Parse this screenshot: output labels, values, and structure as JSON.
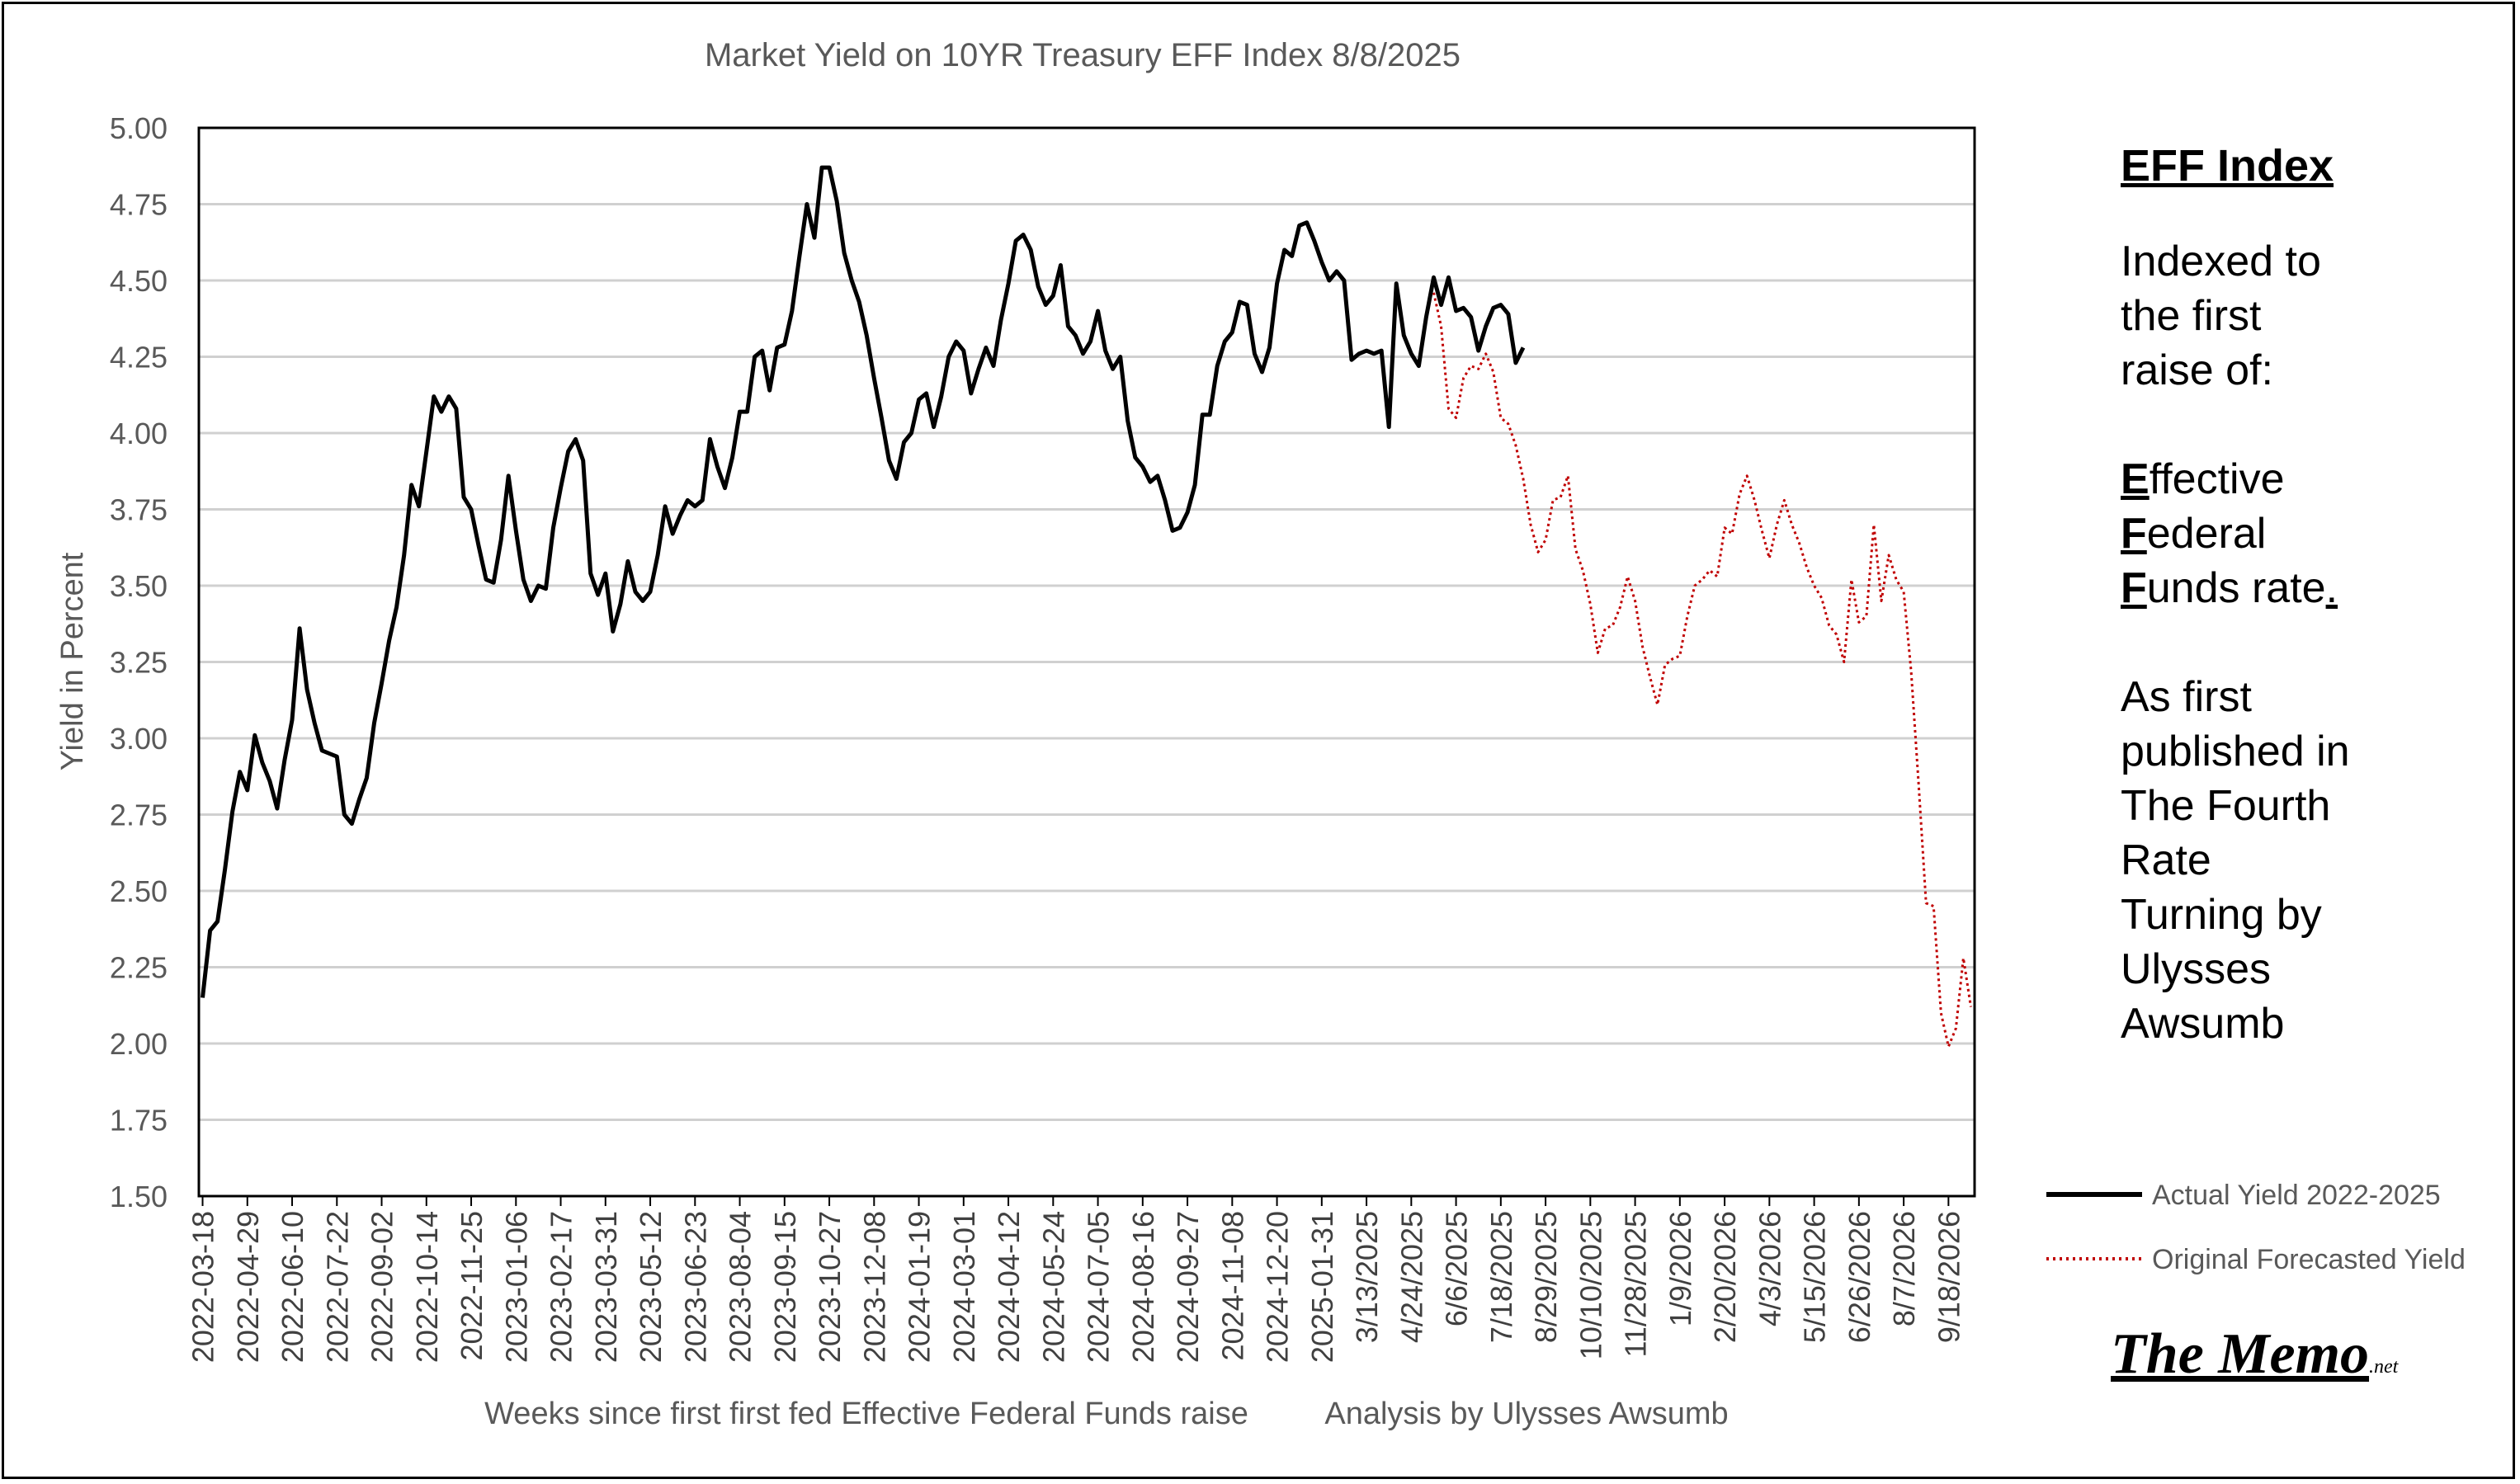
{
  "chart_data": {
    "type": "line",
    "title": "Market Yield on 10YR Treasury EFF Index 8/8/2025",
    "xlabel": "Weeks since first first fed Effective Federal Funds raise",
    "xlabel_note": "Analysis by Ulysses Awsumb",
    "ylabel": "Yield in Percent",
    "ylim": [
      1.5,
      5.0
    ],
    "yticks": [
      "5.00",
      "4.75",
      "4.50",
      "4.25",
      "4.00",
      "3.75",
      "3.50",
      "3.25",
      "3.00",
      "2.75",
      "2.50",
      "2.25",
      "2.00",
      "1.75",
      "1.50"
    ],
    "x_count": 238,
    "xticks": [
      {
        "i": 0,
        "label": "2022-03-18"
      },
      {
        "i": 6,
        "label": "2022-04-29"
      },
      {
        "i": 12,
        "label": "2022-06-10"
      },
      {
        "i": 18,
        "label": "2022-07-22"
      },
      {
        "i": 24,
        "label": "2022-09-02"
      },
      {
        "i": 30,
        "label": "2022-10-14"
      },
      {
        "i": 36,
        "label": "2022-11-25"
      },
      {
        "i": 42,
        "label": "2023-01-06"
      },
      {
        "i": 48,
        "label": "2023-02-17"
      },
      {
        "i": 54,
        "label": "2023-03-31"
      },
      {
        "i": 60,
        "label": "2023-05-12"
      },
      {
        "i": 66,
        "label": "2023-06-23"
      },
      {
        "i": 72,
        "label": "2023-08-04"
      },
      {
        "i": 78,
        "label": "2023-09-15"
      },
      {
        "i": 84,
        "label": "2023-10-27"
      },
      {
        "i": 90,
        "label": "2023-12-08"
      },
      {
        "i": 96,
        "label": "2024-01-19"
      },
      {
        "i": 102,
        "label": "2024-03-01"
      },
      {
        "i": 108,
        "label": "2024-04-12"
      },
      {
        "i": 114,
        "label": "2024-05-24"
      },
      {
        "i": 120,
        "label": "2024-07-05"
      },
      {
        "i": 126,
        "label": "2024-08-16"
      },
      {
        "i": 132,
        "label": "2024-09-27"
      },
      {
        "i": 138,
        "label": "2024-11-08"
      },
      {
        "i": 144,
        "label": "2024-12-20"
      },
      {
        "i": 150,
        "label": "2025-01-31"
      },
      {
        "i": 156,
        "label": "3/13/2025"
      },
      {
        "i": 162,
        "label": "4/24/2025"
      },
      {
        "i": 168,
        "label": "6/6/2025"
      },
      {
        "i": 174,
        "label": "7/18/2025"
      },
      {
        "i": 180,
        "label": "8/29/2025"
      },
      {
        "i": 186,
        "label": "10/10/2025"
      },
      {
        "i": 192,
        "label": "11/28/2025"
      },
      {
        "i": 198,
        "label": "1/9/2026"
      },
      {
        "i": 204,
        "label": "2/20/2026"
      },
      {
        "i": 210,
        "label": "4/3/2026"
      },
      {
        "i": 216,
        "label": "5/15/2026"
      },
      {
        "i": 222,
        "label": "6/26/2026"
      },
      {
        "i": 228,
        "label": "8/7/2026"
      },
      {
        "i": 234,
        "label": "9/18/2026"
      }
    ],
    "grid": true,
    "legend_position": "right",
    "series": [
      {
        "name": "Actual Yield 2022-2025",
        "color": "#000000",
        "style": "solid",
        "points": [
          [
            0,
            2.15
          ],
          [
            1,
            2.37
          ],
          [
            2,
            2.4
          ],
          [
            3,
            2.57
          ],
          [
            4,
            2.76
          ],
          [
            5,
            2.89
          ],
          [
            6,
            2.83
          ],
          [
            7,
            3.01
          ],
          [
            8,
            2.92
          ],
          [
            9,
            2.86
          ],
          [
            10,
            2.77
          ],
          [
            11,
            2.93
          ],
          [
            12,
            3.06
          ],
          [
            13,
            3.36
          ],
          [
            14,
            3.16
          ],
          [
            15,
            3.05
          ],
          [
            16,
            2.96
          ],
          [
            17,
            2.95
          ],
          [
            18,
            2.94
          ],
          [
            19,
            2.75
          ],
          [
            20,
            2.72
          ],
          [
            21,
            2.8
          ],
          [
            22,
            2.87
          ],
          [
            23,
            3.05
          ],
          [
            24,
            3.18
          ],
          [
            25,
            3.32
          ],
          [
            26,
            3.43
          ],
          [
            27,
            3.6
          ],
          [
            28,
            3.83
          ],
          [
            29,
            3.76
          ],
          [
            30,
            3.94
          ],
          [
            31,
            4.12
          ],
          [
            32,
            4.07
          ],
          [
            33,
            4.12
          ],
          [
            34,
            4.08
          ],
          [
            35,
            3.79
          ],
          [
            36,
            3.75
          ],
          [
            37,
            3.63
          ],
          [
            38,
            3.52
          ],
          [
            39,
            3.51
          ],
          [
            40,
            3.65
          ],
          [
            41,
            3.86
          ],
          [
            42,
            3.68
          ],
          [
            43,
            3.52
          ],
          [
            44,
            3.45
          ],
          [
            45,
            3.5
          ],
          [
            46,
            3.49
          ],
          [
            47,
            3.69
          ],
          [
            48,
            3.82
          ],
          [
            49,
            3.94
          ],
          [
            50,
            3.98
          ],
          [
            51,
            3.91
          ],
          [
            52,
            3.54
          ],
          [
            53,
            3.47
          ],
          [
            54,
            3.54
          ],
          [
            55,
            3.35
          ],
          [
            56,
            3.44
          ],
          [
            57,
            3.58
          ],
          [
            58,
            3.48
          ],
          [
            59,
            3.45
          ],
          [
            60,
            3.48
          ],
          [
            61,
            3.6
          ],
          [
            62,
            3.76
          ],
          [
            63,
            3.67
          ],
          [
            64,
            3.73
          ],
          [
            65,
            3.78
          ],
          [
            66,
            3.76
          ],
          [
            67,
            3.78
          ],
          [
            68,
            3.98
          ],
          [
            69,
            3.89
          ],
          [
            70,
            3.82
          ],
          [
            71,
            3.92
          ],
          [
            72,
            4.07
          ],
          [
            73,
            4.07
          ],
          [
            74,
            4.25
          ],
          [
            75,
            4.27
          ],
          [
            76,
            4.14
          ],
          [
            77,
            4.28
          ],
          [
            78,
            4.29
          ],
          [
            79,
            4.4
          ],
          [
            80,
            4.58
          ],
          [
            81,
            4.75
          ],
          [
            82,
            4.64
          ],
          [
            83,
            4.87
          ],
          [
            84,
            4.87
          ],
          [
            85,
            4.76
          ],
          [
            86,
            4.59
          ],
          [
            87,
            4.5
          ],
          [
            88,
            4.43
          ],
          [
            89,
            4.32
          ],
          [
            90,
            4.18
          ],
          [
            91,
            4.05
          ],
          [
            92,
            3.91
          ],
          [
            93,
            3.85
          ],
          [
            94,
            3.97
          ],
          [
            95,
            4.0
          ],
          [
            96,
            4.11
          ],
          [
            97,
            4.13
          ],
          [
            98,
            4.02
          ],
          [
            99,
            4.12
          ],
          [
            100,
            4.25
          ],
          [
            101,
            4.3
          ],
          [
            102,
            4.27
          ],
          [
            103,
            4.13
          ],
          [
            104,
            4.21
          ],
          [
            105,
            4.28
          ],
          [
            106,
            4.22
          ],
          [
            107,
            4.37
          ],
          [
            108,
            4.49
          ],
          [
            109,
            4.63
          ],
          [
            110,
            4.65
          ],
          [
            111,
            4.6
          ],
          [
            112,
            4.48
          ],
          [
            113,
            4.42
          ],
          [
            114,
            4.45
          ],
          [
            115,
            4.55
          ],
          [
            116,
            4.35
          ],
          [
            117,
            4.32
          ],
          [
            118,
            4.26
          ],
          [
            119,
            4.3
          ],
          [
            120,
            4.4
          ],
          [
            121,
            4.27
          ],
          [
            122,
            4.21
          ],
          [
            123,
            4.25
          ],
          [
            124,
            4.04
          ],
          [
            125,
            3.92
          ],
          [
            126,
            3.89
          ],
          [
            127,
            3.84
          ],
          [
            128,
            3.86
          ],
          [
            129,
            3.78
          ],
          [
            130,
            3.68
          ],
          [
            131,
            3.69
          ],
          [
            132,
            3.74
          ],
          [
            133,
            3.83
          ],
          [
            134,
            4.06
          ],
          [
            135,
            4.06
          ],
          [
            136,
            4.22
          ],
          [
            137,
            4.3
          ],
          [
            138,
            4.33
          ],
          [
            139,
            4.43
          ],
          [
            140,
            4.42
          ],
          [
            141,
            4.26
          ],
          [
            142,
            4.2
          ],
          [
            143,
            4.28
          ],
          [
            144,
            4.49
          ],
          [
            145,
            4.6
          ],
          [
            146,
            4.58
          ],
          [
            147,
            4.68
          ],
          [
            148,
            4.69
          ],
          [
            149,
            4.63
          ],
          [
            150,
            4.56
          ],
          [
            151,
            4.5
          ],
          [
            152,
            4.53
          ],
          [
            153,
            4.5
          ],
          [
            154,
            4.24
          ],
          [
            155,
            4.26
          ],
          [
            156,
            4.27
          ],
          [
            157,
            4.26
          ],
          [
            158,
            4.27
          ],
          [
            159,
            4.02
          ],
          [
            160,
            4.49
          ],
          [
            161,
            4.32
          ],
          [
            162,
            4.26
          ],
          [
            163,
            4.22
          ],
          [
            164,
            4.38
          ],
          [
            165,
            4.51
          ],
          [
            166,
            4.42
          ],
          [
            167,
            4.51
          ],
          [
            168,
            4.4
          ],
          [
            169,
            4.41
          ],
          [
            170,
            4.38
          ],
          [
            171,
            4.27
          ],
          [
            172,
            4.35
          ],
          [
            173,
            4.41
          ],
          [
            174,
            4.42
          ],
          [
            175,
            4.39
          ],
          [
            176,
            4.23
          ],
          [
            177,
            4.28
          ]
        ]
      },
      {
        "name": "Original Forecasted Yield",
        "color": "#c00000",
        "style": "dotted",
        "points": [
          [
            165,
            4.46
          ],
          [
            166,
            4.35
          ],
          [
            167,
            4.08
          ],
          [
            168,
            4.05
          ],
          [
            169,
            4.18
          ],
          [
            170,
            4.22
          ],
          [
            171,
            4.21
          ],
          [
            172,
            4.26
          ],
          [
            173,
            4.2
          ],
          [
            174,
            4.05
          ],
          [
            175,
            4.03
          ],
          [
            176,
            3.96
          ],
          [
            177,
            3.85
          ],
          [
            178,
            3.7
          ],
          [
            179,
            3.61
          ],
          [
            180,
            3.65
          ],
          [
            181,
            3.78
          ],
          [
            182,
            3.79
          ],
          [
            183,
            3.86
          ],
          [
            184,
            3.62
          ],
          [
            185,
            3.55
          ],
          [
            186,
            3.44
          ],
          [
            187,
            3.28
          ],
          [
            188,
            3.36
          ],
          [
            189,
            3.37
          ],
          [
            190,
            3.43
          ],
          [
            191,
            3.53
          ],
          [
            192,
            3.45
          ],
          [
            193,
            3.3
          ],
          [
            194,
            3.2
          ],
          [
            195,
            3.11
          ],
          [
            196,
            3.24
          ],
          [
            197,
            3.26
          ],
          [
            198,
            3.27
          ],
          [
            199,
            3.4
          ],
          [
            200,
            3.5
          ],
          [
            201,
            3.52
          ],
          [
            202,
            3.55
          ],
          [
            203,
            3.53
          ],
          [
            204,
            3.69
          ],
          [
            205,
            3.67
          ],
          [
            206,
            3.8
          ],
          [
            207,
            3.86
          ],
          [
            208,
            3.78
          ],
          [
            209,
            3.68
          ],
          [
            210,
            3.59
          ],
          [
            211,
            3.7
          ],
          [
            212,
            3.78
          ],
          [
            213,
            3.7
          ],
          [
            214,
            3.64
          ],
          [
            215,
            3.56
          ],
          [
            216,
            3.5
          ],
          [
            217,
            3.46
          ],
          [
            218,
            3.37
          ],
          [
            219,
            3.34
          ],
          [
            220,
            3.25
          ],
          [
            221,
            3.52
          ],
          [
            222,
            3.38
          ],
          [
            223,
            3.4
          ],
          [
            224,
            3.7
          ],
          [
            225,
            3.45
          ],
          [
            226,
            3.6
          ],
          [
            227,
            3.52
          ],
          [
            228,
            3.48
          ],
          [
            229,
            3.22
          ],
          [
            230,
            2.85
          ],
          [
            231,
            2.46
          ],
          [
            232,
            2.45
          ],
          [
            233,
            2.1
          ],
          [
            234,
            1.99
          ],
          [
            235,
            2.05
          ],
          [
            236,
            2.28
          ],
          [
            237,
            2.12
          ]
        ]
      }
    ]
  },
  "side_panel": {
    "title": "EFF Index",
    "intro": [
      "Indexed to",
      "the first",
      "raise of:"
    ],
    "acronym": [
      {
        "initial": "E",
        "rest": "ffective"
      },
      {
        "initial": "F",
        "rest": "ederal"
      },
      {
        "initial": "F",
        "rest": "unds rate",
        "trail": "."
      }
    ],
    "credit": [
      "As first",
      "published in",
      "The Fourth",
      "Rate",
      "Turning by",
      "Ulysses",
      "Awsumb"
    ]
  },
  "logo": {
    "main": "The Memo",
    "suffix": ".net"
  }
}
